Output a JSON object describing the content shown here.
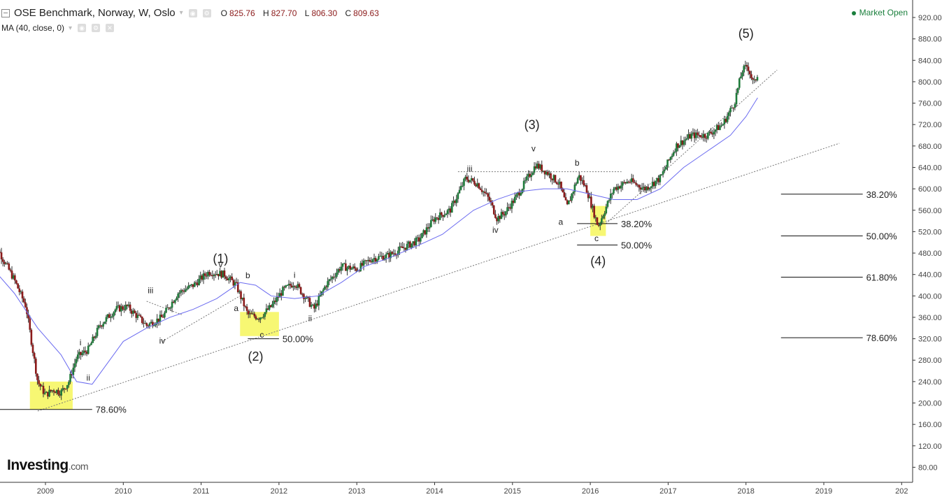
{
  "header": {
    "title": "OSE Benchmark, Norway, W, Oslo",
    "ohlc": [
      {
        "k": "O",
        "v": "825.76"
      },
      {
        "k": "H",
        "v": "827.70"
      },
      {
        "k": "L",
        "v": "806.30"
      },
      {
        "k": "C",
        "v": "809.63"
      }
    ],
    "indicator": "MA (40, close, 0)",
    "market_status": "Market Open"
  },
  "logo": {
    "brand": "Investing",
    "suffix": ".com"
  },
  "colors": {
    "up": "#1e7b3a",
    "down": "#8b1a1a",
    "ma": "#6a6af0",
    "highlight": "#f0f000",
    "axis": "#333333",
    "market": "#1a7f3c"
  },
  "chart_data": {
    "type": "line",
    "title": "OSE Benchmark, Norway, W, Oslo",
    "ylim": [
      60,
      940
    ],
    "x_ticks": [
      "2009",
      "2010",
      "2011",
      "2012",
      "2013",
      "2014",
      "2015",
      "2016",
      "2017",
      "2018",
      "2019",
      "202"
    ],
    "y_ticks": [
      "920.00",
      "880.00",
      "840.00",
      "800.00",
      "760.00",
      "720.00",
      "680.00",
      "640.00",
      "600.00",
      "560.00",
      "520.00",
      "480.00",
      "440.00",
      "400.00",
      "360.00",
      "320.00",
      "280.00",
      "240.00",
      "200.00",
      "160.00",
      "120.00",
      "80.00"
    ],
    "series": [
      {
        "name": "OSE Benchmark",
        "x": [
          2008.3,
          2008.45,
          2008.6,
          2008.75,
          2008.9,
          2009.0,
          2009.1,
          2009.2,
          2009.3,
          2009.4,
          2009.55,
          2009.7,
          2009.9,
          2010.05,
          2010.3,
          2010.5,
          2010.7,
          2010.9,
          2011.1,
          2011.3,
          2011.45,
          2011.6,
          2011.75,
          2011.9,
          2012.05,
          2012.2,
          2012.35,
          2012.45,
          2012.6,
          2012.8,
          2013.0,
          2013.2,
          2013.4,
          2013.6,
          2013.8,
          2014.0,
          2014.2,
          2014.4,
          2014.55,
          2014.7,
          2014.8,
          2014.9,
          2015.05,
          2015.3,
          2015.45,
          2015.6,
          2015.7,
          2015.85,
          2015.95,
          2016.1,
          2016.3,
          2016.5,
          2016.7,
          2016.9,
          2017.1,
          2017.3,
          2017.5,
          2017.7,
          2017.85,
          2017.95,
          2018.02,
          2018.1,
          2018.15
        ],
        "y": [
          515,
          470,
          430,
          380,
          240,
          215,
          225,
          220,
          240,
          285,
          300,
          345,
          375,
          380,
          345,
          360,
          405,
          420,
          445,
          440,
          420,
          365,
          360,
          380,
          410,
          425,
          395,
          375,
          420,
          455,
          450,
          470,
          475,
          490,
          505,
          545,
          560,
          620,
          610,
          580,
          545,
          555,
          585,
          645,
          630,
          610,
          565,
          625,
          600,
          530,
          600,
          615,
          600,
          620,
          680,
          700,
          700,
          720,
          760,
          820,
          830,
          795,
          815
        ]
      },
      {
        "name": "MA (40, close, 0)",
        "x": [
          2008.3,
          2008.6,
          2008.9,
          2009.2,
          2009.4,
          2009.6,
          2009.8,
          2010.0,
          2010.3,
          2010.6,
          2010.9,
          2011.2,
          2011.5,
          2011.7,
          2011.9,
          2012.2,
          2012.5,
          2012.8,
          2013.1,
          2013.4,
          2013.8,
          2014.1,
          2014.5,
          2014.8,
          2015.1,
          2015.4,
          2015.7,
          2016.0,
          2016.3,
          2016.6,
          2016.9,
          2017.2,
          2017.5,
          2017.8,
          2018.0,
          2018.15
        ],
        "y": [
          455,
          405,
          340,
          290,
          240,
          235,
          275,
          315,
          340,
          360,
          375,
          395,
          425,
          420,
          400,
          395,
          400,
          425,
          455,
          470,
          495,
          515,
          560,
          580,
          595,
          600,
          600,
          590,
          580,
          580,
          600,
          640,
          670,
          700,
          735,
          770
        ]
      }
    ],
    "annotations": [
      {
        "text": "(1)",
        "x": 2011.25,
        "y": 462,
        "size": "big"
      },
      {
        "text": "(2)",
        "x": 2011.7,
        "y": 279,
        "size": "big"
      },
      {
        "text": "(3)",
        "x": 2015.25,
        "y": 712,
        "size": "big"
      },
      {
        "text": "(4)",
        "x": 2016.1,
        "y": 457,
        "size": "big"
      },
      {
        "text": "(5)",
        "x": 2018.0,
        "y": 882,
        "size": "big"
      },
      {
        "text": "i",
        "x": 2009.45,
        "y": 308
      },
      {
        "text": "ii",
        "x": 2009.55,
        "y": 242
      },
      {
        "text": "iii",
        "x": 2010.35,
        "y": 405
      },
      {
        "text": "iv",
        "x": 2010.5,
        "y": 311
      },
      {
        "text": "v",
        "x": 2011.25,
        "y": 453
      },
      {
        "text": "a",
        "x": 2011.45,
        "y": 372
      },
      {
        "text": "b",
        "x": 2011.6,
        "y": 433
      },
      {
        "text": "c",
        "x": 2011.78,
        "y": 322
      },
      {
        "text": "i",
        "x": 2012.2,
        "y": 434
      },
      {
        "text": "ii",
        "x": 2012.4,
        "y": 353
      },
      {
        "text": "iii",
        "x": 2014.45,
        "y": 632
      },
      {
        "text": "iv",
        "x": 2014.78,
        "y": 518
      },
      {
        "text": "v",
        "x": 2015.27,
        "y": 670
      },
      {
        "text": "a",
        "x": 2015.62,
        "y": 533
      },
      {
        "text": "b",
        "x": 2015.83,
        "y": 643
      },
      {
        "text": "c",
        "x": 2016.08,
        "y": 502
      }
    ],
    "fib_levels": [
      {
        "label": "78.60%",
        "value": 188,
        "x0": 2008.3,
        "x1": 2009.6
      },
      {
        "label": "50.00%",
        "value": 320,
        "x0": 2011.6,
        "x1": 2012.0
      },
      {
        "label": "38.20%",
        "value": 535,
        "x0": 2015.83,
        "x1": 2016.35
      },
      {
        "label": "50.00%",
        "value": 495,
        "x0": 2015.83,
        "x1": 2016.35
      },
      {
        "label": "38.20%",
        "value": 590,
        "x0": 2018.45,
        "x1": 2019.5
      },
      {
        "label": "50.00%",
        "value": 512,
        "x0": 2018.45,
        "x1": 2019.5
      },
      {
        "label": "61.80%",
        "value": 435,
        "x0": 2018.45,
        "x1": 2019.5
      },
      {
        "label": "78.60%",
        "value": 322,
        "x0": 2018.45,
        "x1": 2019.5
      }
    ],
    "trendlines": [
      {
        "x0": 2008.9,
        "y0": 185,
        "x1": 2019.2,
        "y1": 685
      },
      {
        "x0": 2010.5,
        "y0": 315,
        "x1": 2011.5,
        "y1": 400
      },
      {
        "x0": 2010.3,
        "y0": 390,
        "x1": 2010.75,
        "y1": 365
      },
      {
        "x0": 2014.3,
        "y0": 632,
        "x1": 2016.4,
        "y1": 632
      },
      {
        "x0": 2016.2,
        "y0": 535,
        "x1": 2018.4,
        "y1": 822
      }
    ],
    "highlights": [
      {
        "x0": 2008.8,
        "x1": 2009.35,
        "y0": 188,
        "y1": 240
      },
      {
        "x0": 2011.5,
        "x1": 2012.0,
        "y0": 325,
        "y1": 370
      },
      {
        "x0": 2016.0,
        "x1": 2016.2,
        "y0": 512,
        "y1": 568
      }
    ],
    "grid": false
  }
}
